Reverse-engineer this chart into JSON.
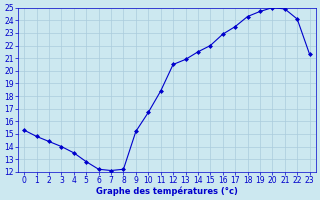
{
  "hours": [
    0,
    1,
    2,
    3,
    4,
    5,
    6,
    7,
    8,
    9,
    10,
    11,
    12,
    13,
    14,
    15,
    16,
    17,
    18,
    19,
    20,
    21,
    22,
    23
  ],
  "temperatures": [
    15.3,
    14.8,
    14.4,
    14.0,
    13.5,
    12.8,
    12.2,
    12.1,
    12.2,
    15.2,
    16.7,
    18.4,
    20.5,
    20.9,
    21.5,
    22.0,
    22.9,
    23.5,
    24.3,
    24.7,
    25.0,
    24.9,
    24.1,
    21.3
  ],
  "line_color": "#0000cc",
  "marker": "D",
  "marker_size": 2.0,
  "bg_color": "#cce8f0",
  "grid_color": "#aaccdd",
  "xlabel": "Graphe des températures (°c)",
  "xlabel_color": "#0000cc",
  "tick_color": "#0000cc",
  "ylim": [
    12,
    25
  ],
  "xlim_min": -0.5,
  "xlim_max": 23.5,
  "yticks": [
    12,
    13,
    14,
    15,
    16,
    17,
    18,
    19,
    20,
    21,
    22,
    23,
    24,
    25
  ],
  "xticks": [
    0,
    1,
    2,
    3,
    4,
    5,
    6,
    7,
    8,
    9,
    10,
    11,
    12,
    13,
    14,
    15,
    16,
    17,
    18,
    19,
    20,
    21,
    22,
    23
  ],
  "tick_labelsize": 5.5,
  "xlabel_fontsize": 6.0,
  "spine_color": "#0000cc",
  "linewidth": 0.8
}
